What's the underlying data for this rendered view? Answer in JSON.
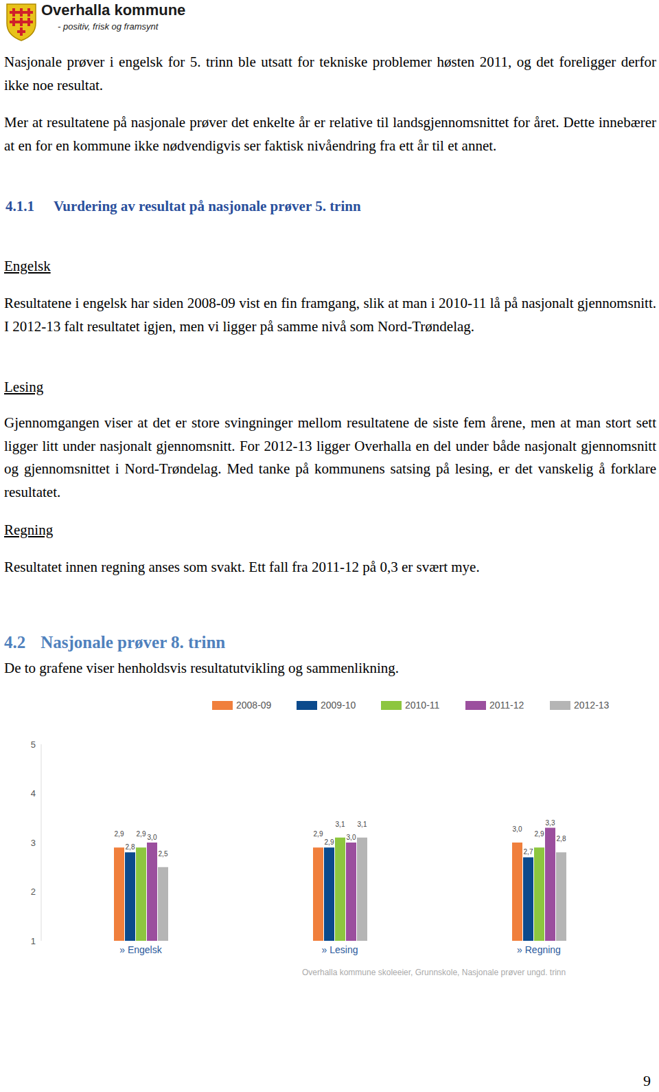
{
  "header": {
    "title": "Overhalla kommune",
    "slogan": "- positiv, frisk og framsynt"
  },
  "intro": [
    "Nasjonale prøver i engelsk for 5. trinn ble utsatt for tekniske problemer høsten 2011, og det foreligger derfor ikke noe resultat.",
    "Mer at resultatene på nasjonale prøver det enkelte år er relative til landsgjennomsnittet for året. Dette innebærer at en for en kommune ikke nødvendigvis ser faktisk nivåendring fra ett år til et annet."
  ],
  "section_4_1_1": {
    "number": "4.1.1",
    "title": "Vurdering av resultat på nasjonale prøver 5. trinn",
    "subsections": [
      {
        "title": "Engelsk",
        "text": "Resultatene i engelsk har siden 2008-09 vist en fin framgang, slik at man i 2010-11 lå på nasjonalt gjennomsnitt. I 2012-13 falt resultatet igjen, men vi ligger på samme nivå som Nord-Trøndelag."
      },
      {
        "title": "Lesing",
        "text": "Gjennomgangen viser at det er store svingninger mellom resultatene de siste fem årene, men at man stort sett ligger litt under nasjonalt gjennomsnitt. For 2012-13 ligger Overhalla en del under både nasjonalt gjennomsnitt og gjennomsnittet i Nord-Trøndelag. Med tanke på kommunens satsing på lesing, er det vanskelig å forklare resultatet."
      },
      {
        "title": "Regning",
        "text": "Resultatet innen regning anses som svakt. Ett fall fra 2011-12 på 0,3 er svært mye."
      }
    ]
  },
  "section_4_2": {
    "number": "4.2",
    "title": "Nasjonale prøver 8. trinn",
    "text": "De to grafene viser henholdsvis resultatutvikling og sammenlikning."
  },
  "chart_data": {
    "type": "bar",
    "categories": [
      "» Engelsk",
      "» Lesing",
      "» Regning"
    ],
    "series": [
      {
        "name": "2008-09",
        "color": "#f07f3c",
        "values": [
          2.9,
          2.9,
          3.0
        ],
        "value_labels": [
          "2,9",
          "2,9",
          "3,0"
        ]
      },
      {
        "name": "2009-10",
        "color": "#0b4a8c",
        "values": [
          2.8,
          2.9,
          2.7
        ],
        "value_labels": [
          "2,8",
          "2,9",
          "2,7"
        ]
      },
      {
        "name": "2010-11",
        "color": "#8dc63f",
        "values": [
          2.9,
          3.1,
          2.9
        ],
        "value_labels": [
          "2,9",
          "3,1",
          "2,9"
        ]
      },
      {
        "name": "2011-12",
        "color": "#9b4f9e",
        "values": [
          3.0,
          3.0,
          3.3
        ],
        "value_labels": [
          "3,0",
          "3,0",
          "3,3"
        ]
      },
      {
        "name": "2012-13",
        "color": "#b5b5b5",
        "values": [
          2.5,
          3.1,
          2.8
        ],
        "value_labels": [
          "2,5",
          "3,1",
          "2,8"
        ]
      }
    ],
    "ylim": [
      1,
      5
    ],
    "yticks": [
      1,
      2,
      3,
      4,
      5
    ],
    "grid": false,
    "data_labels": true,
    "legend": "top",
    "source": "Overhalla kommune skoleeier, Grunnskole, Nasjonale prøver ungd. trinn"
  },
  "page_number": 9
}
